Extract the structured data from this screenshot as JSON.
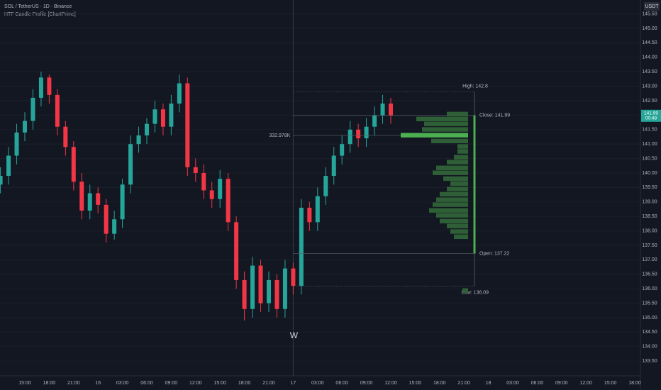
{
  "chart_data": {
    "type": "candlestick",
    "title": "SOL / TetherUS · 1D · Binance",
    "indicator": "HTF Candle Profile [ChartPrime]",
    "currency": "USDT",
    "last_price": 141.99,
    "countdown": "00:48",
    "marker": "W",
    "up_color": "#26a69a",
    "down_color": "#f23645",
    "categories": [
      null,
      null,
      null,
      "15:00",
      null,
      null,
      "18:00",
      null,
      null,
      "21:00",
      null,
      null,
      "16",
      null,
      null,
      "03:00",
      null,
      null,
      "06:00",
      null,
      null,
      "09:00",
      null,
      null,
      "12:00",
      null,
      null,
      "15:00",
      null,
      null,
      "18:00",
      null,
      null,
      "21:00",
      null,
      null,
      "17",
      null,
      null,
      "03:00",
      null,
      null,
      "06:00",
      null,
      null,
      "09:00",
      null,
      null,
      "12:00",
      null,
      null,
      "15:00",
      null,
      null,
      "18:00",
      null,
      null,
      "21:00",
      null,
      null,
      "18",
      null,
      null,
      "03:00",
      null,
      null,
      "06:00",
      null,
      null,
      "09:00",
      null,
      null,
      "12:00",
      null,
      null,
      "15:00",
      null,
      null,
      "18:00"
    ],
    "open": [
      139.6,
      139.9,
      140.6,
      141.4,
      141.8,
      142.6,
      143.3,
      142.7,
      141.6,
      140.9,
      139.7,
      138.7,
      139.3,
      138.9,
      137.9,
      138.4,
      139.6,
      141.0,
      141.3,
      141.7,
      142.2,
      141.6,
      142.4,
      143.1,
      140.2,
      140.0,
      139.4,
      139.1,
      139.8,
      138.3,
      136.3,
      135.3,
      136.8,
      135.5,
      136.3,
      135.3,
      136.7,
      136.1,
      138.8,
      138.3,
      139.2,
      139.9,
      140.6,
      141.0,
      141.5,
      141.2,
      141.6,
      142.0,
      142.4,
      null,
      null,
      null,
      null,
      null,
      null,
      null,
      null,
      null,
      null,
      null,
      null,
      null,
      null,
      null,
      null,
      null,
      null,
      null,
      null,
      null,
      null,
      null,
      null,
      null,
      null,
      null,
      null,
      null,
      null
    ],
    "high": [
      140.2,
      140.9,
      141.7,
      142.1,
      142.9,
      143.5,
      143.4,
      142.9,
      141.8,
      141.1,
      140.0,
      139.6,
      139.5,
      139.1,
      138.7,
      139.8,
      141.3,
      141.6,
      141.9,
      142.5,
      142.4,
      142.7,
      143.4,
      143.3,
      140.5,
      140.3,
      139.7,
      140.1,
      140.0,
      138.5,
      136.6,
      137.1,
      137.0,
      136.6,
      136.5,
      137.0,
      136.9,
      139.1,
      139.0,
      139.5,
      140.2,
      140.9,
      141.3,
      141.8,
      141.7,
      141.9,
      142.3,
      142.7,
      142.6,
      null,
      null,
      null,
      null,
      null,
      null,
      null,
      null,
      null,
      null,
      null,
      null,
      null,
      null,
      null,
      null,
      null,
      null,
      null,
      null,
      null,
      null,
      null,
      null,
      null,
      null,
      null,
      null,
      null,
      null
    ],
    "low": [
      139.3,
      139.6,
      140.3,
      141.1,
      141.5,
      142.3,
      142.4,
      141.3,
      140.6,
      139.4,
      138.4,
      138.4,
      138.6,
      137.6,
      137.7,
      138.1,
      139.3,
      140.7,
      141.0,
      141.4,
      141.3,
      141.3,
      142.1,
      139.9,
      139.7,
      139.1,
      138.8,
      138.8,
      138.0,
      136.0,
      134.9,
      135.0,
      135.2,
      135.2,
      135.0,
      135.0,
      135.8,
      135.8,
      138.0,
      138.0,
      138.9,
      139.6,
      140.3,
      140.7,
      140.9,
      140.9,
      141.3,
      141.7,
      141.7,
      null,
      null,
      null,
      null,
      null,
      null,
      null,
      null,
      null,
      null,
      null,
      null,
      null,
      null,
      null,
      null,
      null,
      null,
      null,
      null,
      null,
      null,
      null,
      null,
      null,
      null,
      null,
      null,
      null,
      null
    ],
    "close": [
      139.9,
      140.6,
      141.4,
      141.8,
      142.6,
      143.3,
      142.7,
      141.6,
      140.9,
      139.7,
      138.7,
      139.3,
      138.9,
      137.9,
      138.4,
      139.6,
      141.0,
      141.3,
      141.7,
      142.2,
      141.6,
      142.4,
      143.1,
      140.2,
      140.0,
      139.4,
      139.1,
      139.8,
      138.3,
      136.3,
      135.3,
      136.8,
      135.5,
      136.3,
      135.3,
      136.7,
      136.1,
      138.8,
      138.3,
      139.2,
      139.9,
      140.6,
      141.0,
      141.5,
      141.2,
      141.6,
      142.0,
      142.4,
      141.99,
      null,
      null,
      null,
      null,
      null,
      null,
      null,
      null,
      null,
      null,
      null,
      null,
      null,
      null,
      null,
      null,
      null,
      null,
      null,
      null,
      null,
      null,
      null,
      null,
      null,
      null,
      null,
      null,
      null,
      null
    ],
    "ylim": [
      132.99,
      145.98
    ],
    "yticks": [
      {
        "value": 133.5,
        "label": "133.50"
      },
      {
        "value": 134,
        "label": "134.00"
      },
      {
        "value": 134.5,
        "label": "134.50"
      },
      {
        "value": 135,
        "label": "135.00"
      },
      {
        "value": 135.5,
        "label": "135.50"
      },
      {
        "value": 136,
        "label": "136.00"
      },
      {
        "value": 136.5,
        "label": "136.50"
      },
      {
        "value": 137,
        "label": "137.00"
      },
      {
        "value": 137.5,
        "label": "137.50"
      },
      {
        "value": 138,
        "label": "138.00"
      },
      {
        "value": 138.5,
        "label": "138.50"
      },
      {
        "value": 139,
        "label": "139.00"
      },
      {
        "value": 139.5,
        "label": "139.50"
      },
      {
        "value": 140,
        "label": "140.00"
      },
      {
        "value": 140.5,
        "label": "140.50"
      },
      {
        "value": 141,
        "label": "141.00"
      },
      {
        "value": 141.5,
        "label": "141.50"
      },
      {
        "value": 142,
        "label": "142.00"
      },
      {
        "value": 142.5,
        "label": "142.50"
      },
      {
        "value": 143,
        "label": "143.00"
      },
      {
        "value": 143.5,
        "label": "143.50"
      },
      {
        "value": 144,
        "label": "144.00"
      },
      {
        "value": 144.5,
        "label": "144.50"
      },
      {
        "value": 145,
        "label": "145.00"
      },
      {
        "value": 145.5,
        "label": "145.50"
      }
    ],
    "htf": {
      "high": {
        "value": 142.8,
        "label": "High: 142.8"
      },
      "close": {
        "value": 141.99,
        "label": "Close: 141.99"
      },
      "open": {
        "value": 137.22,
        "label": "Open: 137.22"
      },
      "low": {
        "value": 136.09,
        "label": "Low: 136.09"
      },
      "color": "#4caf50"
    },
    "profile": {
      "color": "#2f5f36",
      "poc_color": "#4caf50",
      "levels": [
        142.03,
        141.86,
        141.69,
        141.5,
        141.3,
        141.1,
        140.91,
        140.74,
        140.54,
        140.37,
        140.17,
        140.0,
        139.8,
        139.63,
        139.44,
        139.26,
        139.07,
        138.9,
        138.7,
        138.53,
        138.33,
        138.16,
        137.97,
        137.79,
        135.93
      ],
      "values": [
        105151,
        255868,
        217313,
        227828,
        332978,
        182262,
        52575,
        52575,
        70101,
        105151,
        157727,
        175252,
        122677,
        87626,
        105151,
        140201,
        157727,
        175252,
        192777,
        157727,
        140201,
        105151,
        87626,
        70101,
        28040
      ],
      "value_labels": [
        null,
        null,
        null,
        null,
        "332.978K",
        null,
        null,
        null,
        null,
        null,
        null,
        null,
        null,
        null,
        null,
        null,
        null,
        null,
        null,
        null,
        null,
        null,
        null,
        null,
        null
      ]
    }
  }
}
